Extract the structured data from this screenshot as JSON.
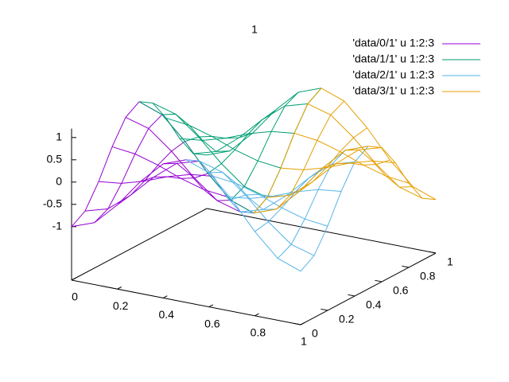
{
  "chart_data": {
    "type": "surface",
    "title": "1",
    "xlim": [
      0,
      1
    ],
    "ylim": [
      0,
      1
    ],
    "zlim": [
      -1,
      1
    ],
    "xticks": [
      0,
      0.2,
      0.4,
      0.6,
      0.8,
      1
    ],
    "yticks": [
      0,
      0.2,
      0.4,
      0.6,
      0.8,
      1
    ],
    "zticks": [
      -1,
      -0.5,
      0,
      0.5,
      1
    ],
    "series": [
      {
        "name": "'data/0/1' u 1:2:3",
        "color": "#9400d3",
        "x": [
          0,
          0.1,
          0.2,
          0.3,
          0.4,
          0.5
        ],
        "y": [
          0,
          0.1,
          0.2,
          0.3,
          0.4,
          0.5
        ],
        "z": [
          [
            -1,
            -0.81,
            -0.31,
            0.31,
            0.81,
            1
          ],
          [
            -0.81,
            -0.66,
            -0.25,
            0.25,
            0.66,
            0.81
          ],
          [
            -0.31,
            -0.25,
            -0.1,
            0.1,
            0.25,
            0.31
          ],
          [
            0.31,
            0.25,
            0.1,
            -0.1,
            -0.25,
            -0.31
          ],
          [
            0.81,
            0.66,
            0.25,
            -0.25,
            -0.66,
            -0.81
          ],
          [
            1,
            0.81,
            0.31,
            -0.31,
            -0.81,
            -1
          ]
        ]
      },
      {
        "name": "'data/1/1' u 1:2:3",
        "color": "#009e73",
        "x": [
          0,
          0.1,
          0.2,
          0.3,
          0.4,
          0.5
        ],
        "y": [
          0.5,
          0.6,
          0.7,
          0.8,
          0.9,
          1
        ],
        "z": [
          [
            1,
            0.81,
            0.31,
            -0.31,
            -0.81,
            -1
          ],
          [
            0.81,
            0.66,
            0.25,
            -0.25,
            -0.66,
            -0.81
          ],
          [
            0.31,
            0.25,
            0.1,
            -0.1,
            -0.25,
            -0.31
          ],
          [
            -0.31,
            -0.25,
            -0.1,
            0.1,
            0.25,
            0.31
          ],
          [
            -0.81,
            -0.66,
            -0.25,
            0.25,
            0.66,
            0.81
          ],
          [
            -1,
            -0.81,
            -0.31,
            0.31,
            0.81,
            1
          ]
        ]
      },
      {
        "name": "'data/2/1' u 1:2:3",
        "color": "#56b4e9",
        "x": [
          0.5,
          0.6,
          0.7,
          0.8,
          0.9,
          1
        ],
        "y": [
          0,
          0.1,
          0.2,
          0.3,
          0.4,
          0.5
        ],
        "z": [
          [
            1,
            0.81,
            0.31,
            -0.31,
            -0.81,
            -1
          ],
          [
            0.81,
            0.66,
            0.25,
            -0.25,
            -0.66,
            -0.81
          ],
          [
            0.31,
            0.25,
            0.1,
            -0.1,
            -0.25,
            -0.31
          ],
          [
            -0.31,
            -0.25,
            -0.1,
            0.1,
            0.25,
            0.31
          ],
          [
            -0.81,
            -0.66,
            -0.25,
            0.25,
            0.66,
            0.81
          ],
          [
            -1,
            -0.81,
            -0.31,
            0.31,
            0.81,
            1
          ]
        ]
      },
      {
        "name": "'data/3/1' u 1:2:3",
        "color": "#e69f00",
        "x": [
          0.5,
          0.6,
          0.7,
          0.8,
          0.9,
          1
        ],
        "y": [
          0.5,
          0.6,
          0.7,
          0.8,
          0.9,
          1
        ],
        "z": [
          [
            -1,
            -0.81,
            -0.31,
            0.31,
            0.81,
            1
          ],
          [
            -0.81,
            -0.66,
            -0.25,
            0.25,
            0.66,
            0.81
          ],
          [
            -0.31,
            -0.25,
            -0.1,
            0.1,
            0.25,
            0.31
          ],
          [
            0.31,
            0.25,
            0.1,
            -0.1,
            -0.25,
            -0.31
          ],
          [
            0.81,
            0.66,
            0.25,
            -0.25,
            -0.66,
            -0.81
          ],
          [
            1,
            0.81,
            0.31,
            -0.31,
            -0.81,
            -1
          ]
        ]
      }
    ]
  }
}
